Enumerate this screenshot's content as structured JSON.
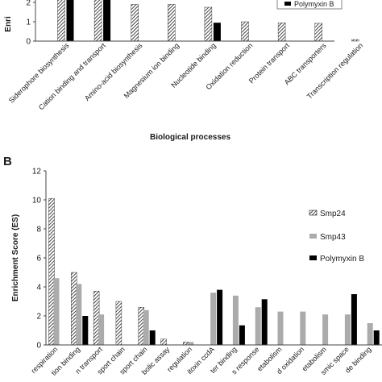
{
  "chart_data": [
    {
      "type": "bar",
      "panel_label": "",
      "title": "",
      "xlabel": "Biological processes",
      "ylabel": "Enri",
      "ylim": [
        0,
        3
      ],
      "yticks": [
        "0",
        "1",
        "2"
      ],
      "grid": false,
      "legend_position": "top-right",
      "categories": [
        "Siderophore biosynthesis",
        "Cation binding and transport",
        "Amino-acid biosynthesis",
        "Magnesium ion binding",
        "Nucleotide binding",
        "Oxidation reduction",
        "Protein transport",
        "ABC transporters",
        "Transcription regulation"
      ],
      "series": [
        {
          "name": "",
          "pattern": "hatch",
          "values": [
            3.0,
            3.0,
            1.9,
            1.9,
            1.75,
            1.0,
            0.95,
            0.92,
            0.08
          ]
        },
        {
          "name": "Polymyxin B",
          "pattern": "solid",
          "color": "#000000",
          "values": [
            3.0,
            3.0,
            null,
            null,
            0.95,
            null,
            null,
            null,
            null
          ]
        }
      ]
    },
    {
      "type": "bar",
      "panel_label": "B",
      "title": "",
      "xlabel": "",
      "ylabel": "Enrichment Score (ES)",
      "ylim": [
        0,
        12
      ],
      "yticks": [
        "0",
        "2",
        "4",
        "6",
        "8",
        "10",
        "12"
      ],
      "grid": false,
      "legend_position": "right",
      "categories": [
        "respiration",
        "tion binding",
        "n transport",
        "sport chain",
        "sport chain",
        "bolic assay",
        "regulation",
        "itoxin ccdA",
        "ter binding",
        "s response",
        "etabolism",
        "d oxidation",
        "etabolism",
        "smic space",
        "de binding"
      ],
      "series": [
        {
          "name": "Smp24",
          "pattern": "hatch",
          "values": [
            10.1,
            5.0,
            3.7,
            3.0,
            2.6,
            0.4,
            0.2,
            null,
            null,
            null,
            null,
            null,
            null,
            null,
            null
          ]
        },
        {
          "name": "Smp43",
          "pattern": "solid",
          "color": "#ababab",
          "values": [
            4.6,
            4.2,
            2.1,
            null,
            2.4,
            null,
            0.2,
            3.6,
            3.4,
            2.6,
            2.3,
            2.3,
            2.1,
            2.1,
            1.5
          ]
        },
        {
          "name": "Polymyxin B",
          "pattern": "solid",
          "color": "#000000",
          "values": [
            null,
            2.0,
            null,
            null,
            1.0,
            null,
            null,
            3.8,
            1.35,
            3.15,
            null,
            null,
            null,
            3.5,
            1.0
          ]
        }
      ]
    }
  ]
}
